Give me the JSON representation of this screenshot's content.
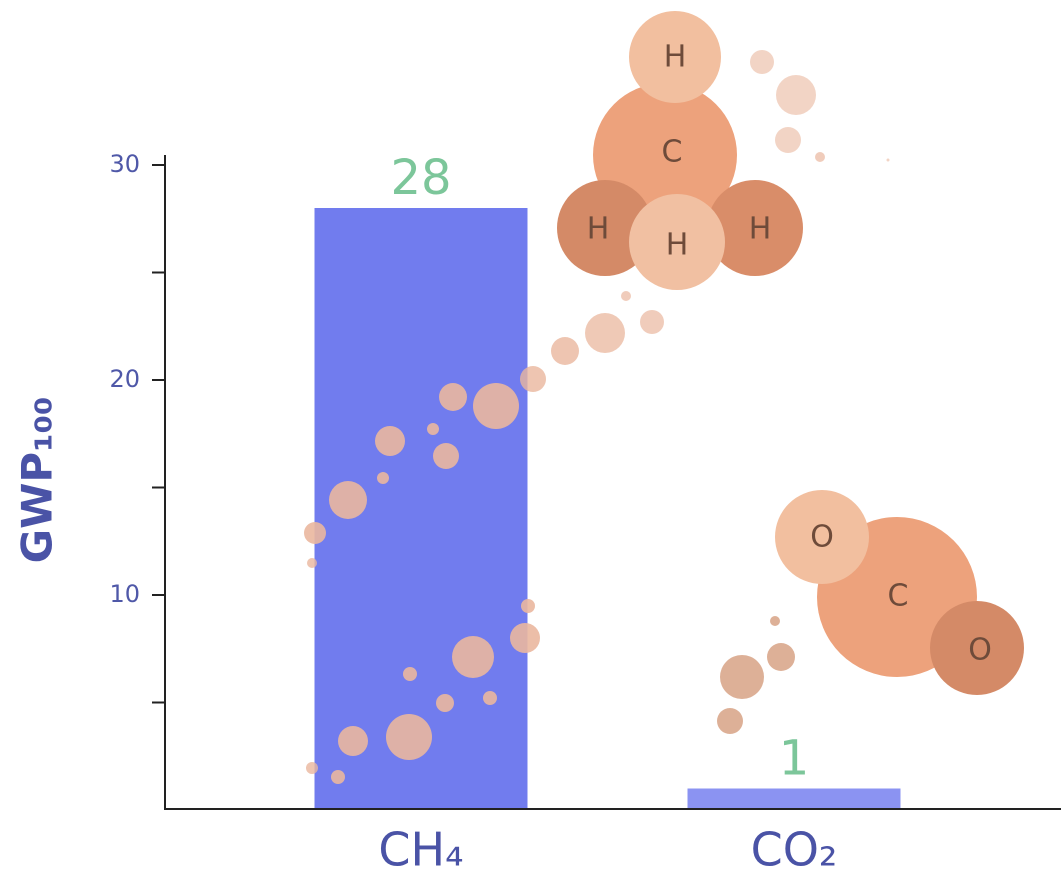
{
  "chart_data": {
    "type": "bar",
    "y_label": "GWP₁₀₀",
    "categories": [
      "CH₄",
      "CO₂"
    ],
    "values": [
      28,
      1
    ],
    "colors": [
      "#717cee",
      "#8b93f2"
    ],
    "value_label_color": "#7cc69a",
    "ylim": [
      0,
      30
    ],
    "yticks": [
      10,
      20,
      30
    ],
    "yminorticks": [
      5,
      15,
      25
    ]
  },
  "illustrations": {
    "methane_atoms": [
      "H",
      "C",
      "H",
      "H",
      "H"
    ],
    "carbon_dioxide_atoms": [
      "O",
      "C",
      "O"
    ]
  }
}
